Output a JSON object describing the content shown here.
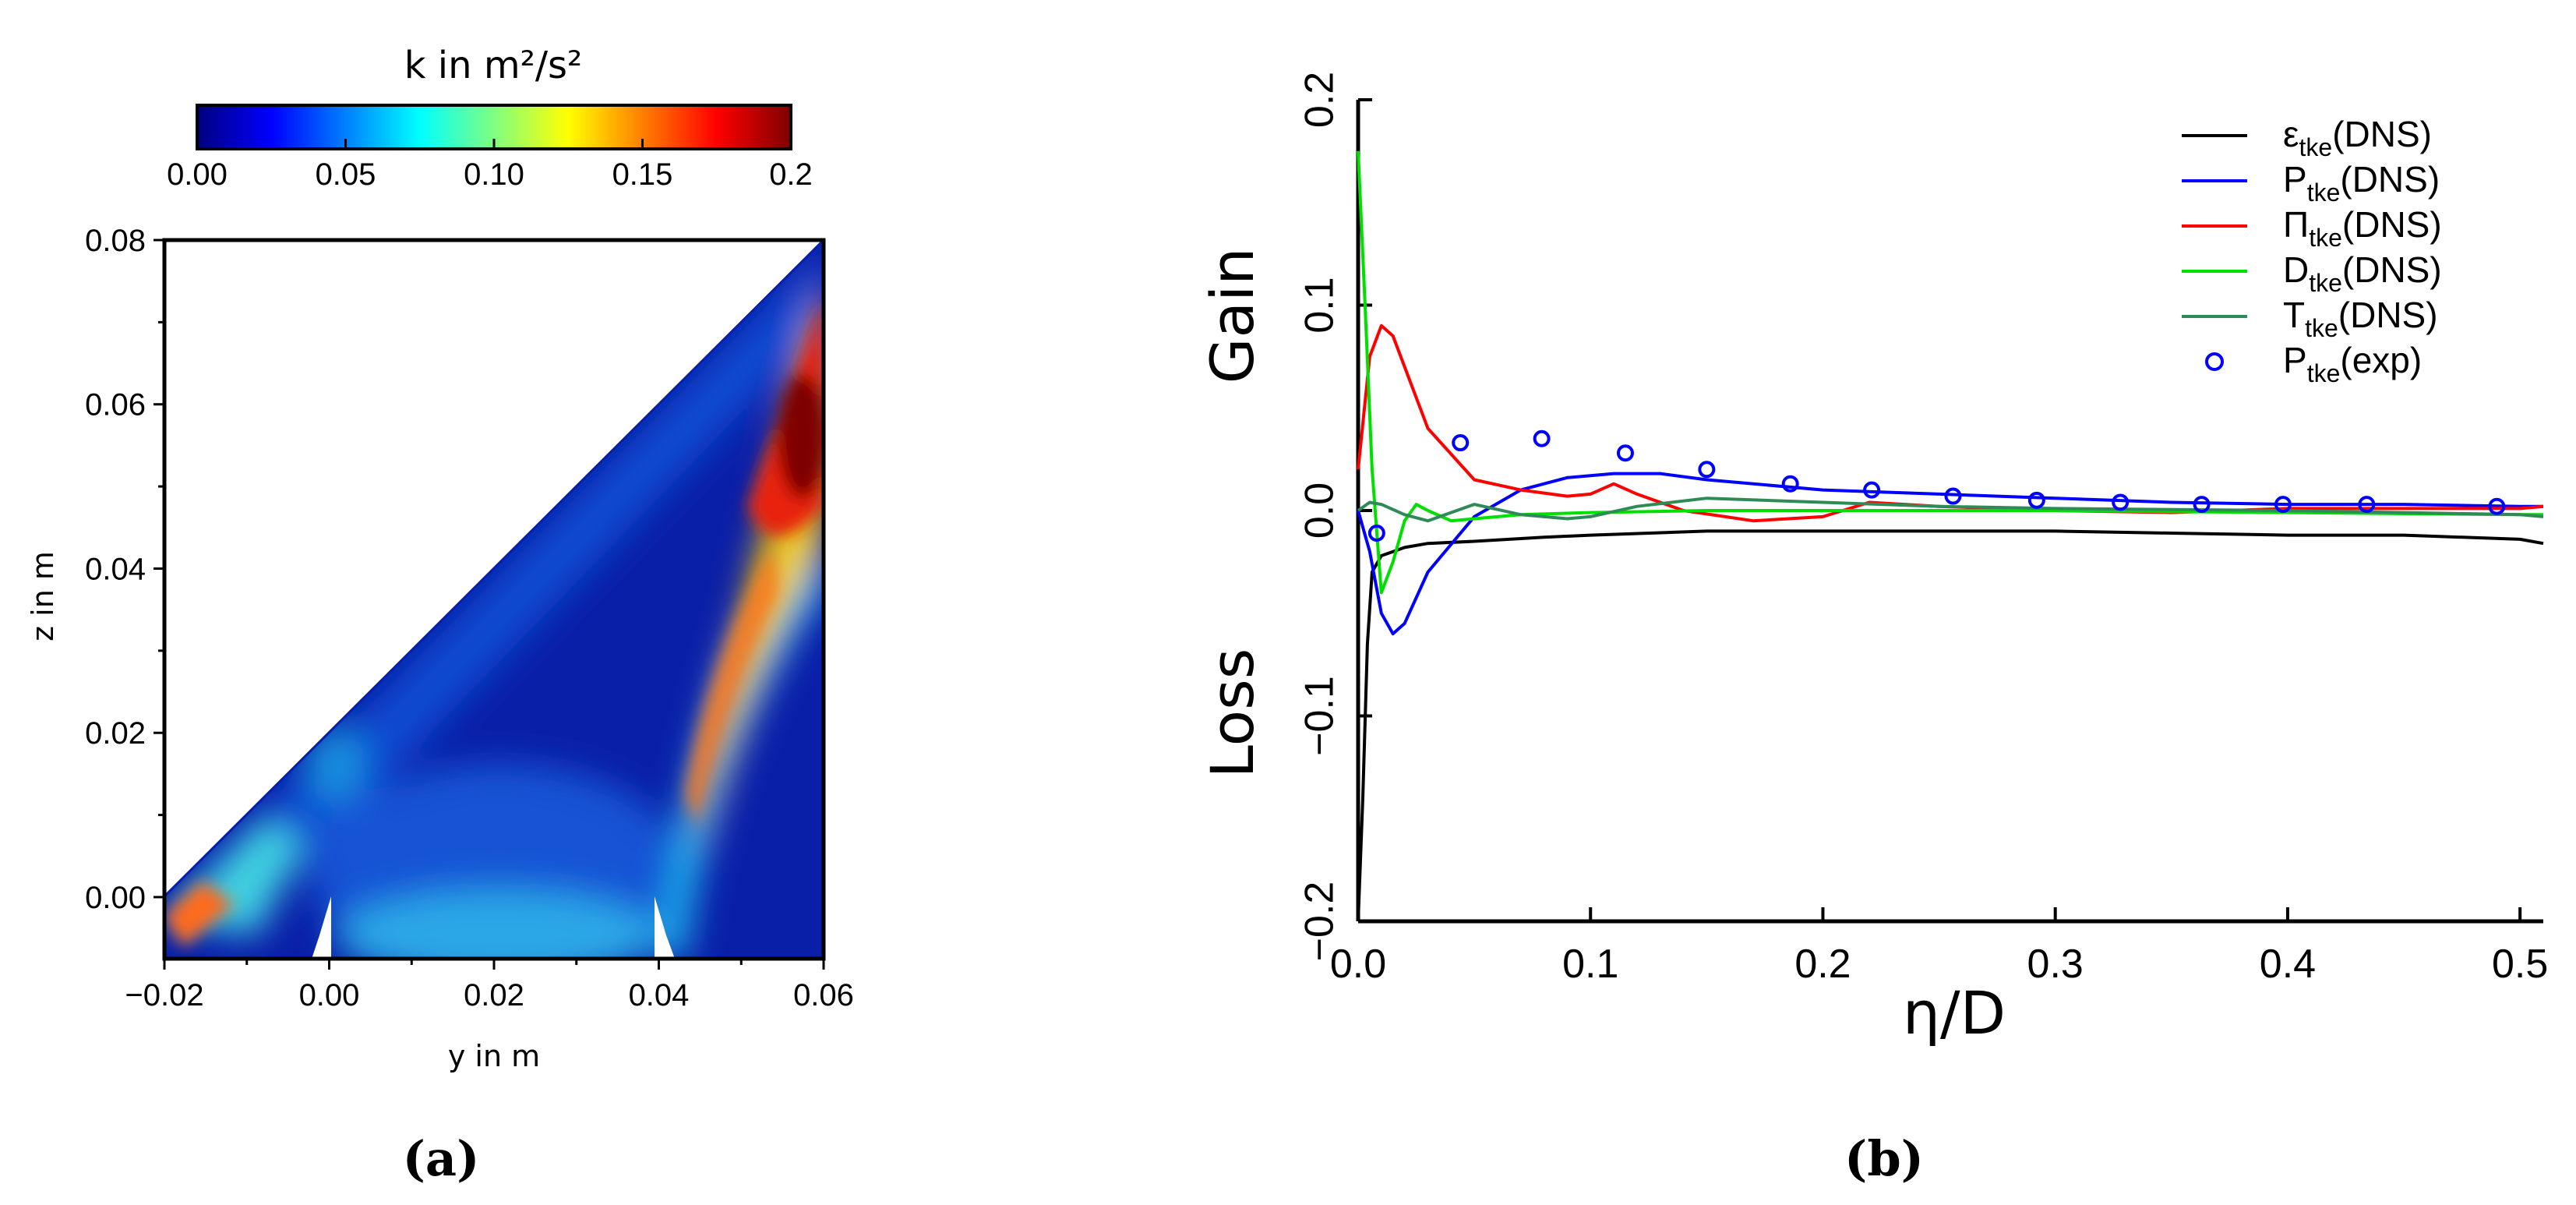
{
  "chart_data": [
    {
      "type": "heatmap",
      "panel_label": "(a)",
      "title": "k in m²/s²",
      "xlabel": "y in m",
      "ylabel": "z in m",
      "xlim": [
        -0.02,
        0.06
      ],
      "ylim": [
        -0.0075,
        0.08
      ],
      "xticks": [
        "−0.02",
        "0.00",
        "0.02",
        "0.04",
        "0.06"
      ],
      "yticks": [
        "0.00",
        "0.02",
        "0.04",
        "0.06",
        "0.08"
      ],
      "colorbar": {
        "range": [
          0.0,
          0.2
        ],
        "ticks": [
          "0.00",
          "0.05",
          "0.10",
          "0.15",
          "0.2"
        ],
        "colormap": [
          "#00007f",
          "#0000ff",
          "#007fff",
          "#00ffff",
          "#7fff7f",
          "#ffff00",
          "#ff7f00",
          "#ff0000",
          "#7f0000"
        ]
      },
      "description_regions": {
        "diagonal_wall": "line from (-0.02, 0.0) to (0.06, 0.08)",
        "high_k_band": "from about (0.04, 0.0) curving up to (0.06, 0.07), peak k about 0.2 near (0.055, 0.058)",
        "left_jet": "moderate k band along the diagonal near (-0.02, 0.0) to (-0.005, 0.015)",
        "channel": "moderate k between y = 0.00 and y = 0.04 near z = -0.007"
      }
    },
    {
      "type": "line",
      "panel_label": "(b)",
      "xlabel": "η/D",
      "ylabel_top": "Gain",
      "ylabel_bottom": "Loss",
      "xlim": [
        0.0,
        0.51
      ],
      "ylim": [
        -0.2,
        0.2
      ],
      "xticks": [
        "0.0",
        "0.1",
        "0.2",
        "0.3",
        "0.4",
        "0.5"
      ],
      "yticks": [
        "−0.2",
        "−0.1",
        "0.0",
        "0.1",
        "0.2"
      ],
      "legend_position": "top-right",
      "series": [
        {
          "name": "ε",
          "sub": "tke",
          "suffix": "(DNS)",
          "color": "#000000",
          "x": [
            0.0,
            0.002,
            0.004,
            0.006,
            0.01,
            0.015,
            0.02,
            0.03,
            0.05,
            0.08,
            0.1,
            0.15,
            0.2,
            0.25,
            0.3,
            0.35,
            0.4,
            0.45,
            0.5,
            0.51
          ],
          "y": [
            -0.2,
            -0.14,
            -0.065,
            -0.03,
            -0.022,
            -0.02,
            -0.018,
            -0.016,
            -0.015,
            -0.013,
            -0.012,
            -0.01,
            -0.01,
            -0.01,
            -0.01,
            -0.011,
            -0.012,
            -0.012,
            -0.014,
            -0.016
          ]
        },
        {
          "name": "P",
          "sub": "tke",
          "suffix": "(DNS)",
          "color": "#0000ff",
          "x": [
            0.0,
            0.005,
            0.01,
            0.015,
            0.02,
            0.03,
            0.05,
            0.07,
            0.09,
            0.11,
            0.13,
            0.15,
            0.2,
            0.25,
            0.3,
            0.35,
            0.4,
            0.45,
            0.5,
            0.51
          ],
          "y": [
            0.0,
            -0.02,
            -0.05,
            -0.06,
            -0.055,
            -0.03,
            -0.003,
            0.01,
            0.016,
            0.018,
            0.018,
            0.015,
            0.01,
            0.008,
            0.006,
            0.004,
            0.003,
            0.003,
            0.002,
            0.002
          ]
        },
        {
          "name": "Π",
          "sub": "tke",
          "suffix": "(DNS)",
          "color": "#ff0000",
          "x": [
            0.0,
            0.005,
            0.01,
            0.015,
            0.02,
            0.03,
            0.05,
            0.07,
            0.09,
            0.1,
            0.11,
            0.12,
            0.14,
            0.17,
            0.2,
            0.22,
            0.25,
            0.3,
            0.35,
            0.4,
            0.45,
            0.5,
            0.51
          ],
          "y": [
            0.02,
            0.075,
            0.09,
            0.085,
            0.07,
            0.04,
            0.015,
            0.01,
            0.007,
            0.008,
            0.013,
            0.008,
            0.0,
            -0.005,
            -0.003,
            0.004,
            0.002,
            0.0,
            -0.001,
            0.001,
            0.001,
            0.001,
            0.002
          ]
        },
        {
          "name": "D",
          "sub": "tke",
          "suffix": "(DNS)",
          "color": "#00e000",
          "x": [
            0.0,
            0.003,
            0.006,
            0.01,
            0.015,
            0.02,
            0.025,
            0.03,
            0.04,
            0.05,
            0.07,
            0.1,
            0.15,
            0.2,
            0.3,
            0.4,
            0.5,
            0.51
          ],
          "y": [
            0.175,
            0.1,
            0.02,
            -0.04,
            -0.025,
            -0.005,
            0.003,
            0.0,
            -0.005,
            -0.004,
            -0.002,
            -0.001,
            0.0,
            0.0,
            0.0,
            -0.001,
            -0.002,
            -0.002
          ]
        },
        {
          "name": "T",
          "sub": "tke",
          "suffix": "(DNS)",
          "color": "#2e8b57",
          "x": [
            0.0,
            0.005,
            0.01,
            0.02,
            0.03,
            0.04,
            0.05,
            0.07,
            0.09,
            0.1,
            0.12,
            0.15,
            0.2,
            0.25,
            0.3,
            0.4,
            0.5,
            0.51
          ],
          "y": [
            0.0,
            0.004,
            0.003,
            -0.002,
            -0.005,
            -0.001,
            0.003,
            -0.002,
            -0.004,
            -0.003,
            0.002,
            0.006,
            0.004,
            0.002,
            0.001,
            0.0,
            -0.002,
            -0.003
          ]
        },
        {
          "name": "P",
          "sub": "tke",
          "suffix": "(exp)",
          "color": "#0000ff",
          "marker": "circle",
          "x": [
            0.008,
            0.044,
            0.079,
            0.115,
            0.15,
            0.186,
            0.221,
            0.256,
            0.292,
            0.328,
            0.363,
            0.398,
            0.434,
            0.49
          ],
          "y": [
            -0.011,
            0.033,
            0.035,
            0.028,
            0.02,
            0.013,
            0.01,
            0.007,
            0.005,
            0.004,
            0.003,
            0.003,
            0.003,
            0.002
          ]
        }
      ]
    }
  ]
}
